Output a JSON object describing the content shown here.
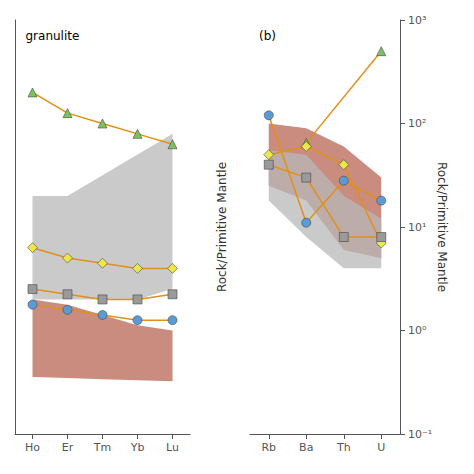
{
  "chart_data": [
    {
      "type": "line",
      "annotation": "granulite",
      "categories": [
        "Ho",
        "Er",
        "Tm",
        "Yb",
        "Lu"
      ],
      "ylim": [
        -5,
        35
      ],
      "tick_labels": "x",
      "grid": false,
      "series": [
        {
          "type": "band",
          "color": "#C07868",
          "values": [
            8,
            7.5,
            6.5,
            5.5,
            5.0
          ],
          "lower": [
            0.5,
            0.4,
            0.3,
            0.2,
            0.1
          ]
        },
        {
          "type": "band",
          "color": "#B8B8B8",
          "values": [
            18,
            18,
            20,
            22,
            24
          ],
          "lower": [
            8,
            8,
            8,
            8,
            9
          ]
        },
        {
          "type": "line",
          "color": "#E09018",
          "values": [
            28,
            26,
            25,
            24,
            23
          ]
        },
        {
          "type": "scatter",
          "marker": "triangle",
          "color": "#7DC35B",
          "values": [
            28,
            26,
            25,
            24,
            23
          ]
        },
        {
          "type": "line",
          "color": "#E09018",
          "values": [
            13,
            12,
            11.5,
            11,
            11
          ]
        },
        {
          "type": "scatter",
          "marker": "diamond",
          "color": "#EDE84A",
          "values": [
            13,
            12,
            11.5,
            11,
            11
          ]
        },
        {
          "type": "line",
          "color": "#E09018",
          "values": [
            9,
            8.5,
            8,
            8,
            8.5
          ]
        },
        {
          "type": "scatter",
          "marker": "square",
          "color": "#9A9A9A",
          "values": [
            9,
            8.5,
            8,
            8,
            8.5
          ]
        },
        {
          "type": "line",
          "color": "#E09018",
          "values": [
            7.5,
            7,
            6.5,
            6,
            6
          ]
        },
        {
          "type": "scatter",
          "marker": "circle",
          "color": "#5B9BD5",
          "values": [
            7.5,
            7,
            6.5,
            6,
            6
          ]
        }
      ]
    },
    {
      "type": "line",
      "annotation": "(b)",
      "ylabel": "Rock/Primitive Mantle",
      "categories": [
        "Rb",
        "Ba",
        "Th",
        "U"
      ],
      "log": "y",
      "ylim": [
        0.1,
        1000
      ],
      "yticks": [
        {
          "value": 0.1,
          "label": "10⁻¹"
        },
        {
          "value": 1,
          "label": "10⁰"
        },
        {
          "value": 10,
          "label": "10¹"
        },
        {
          "value": 100,
          "label": "10²"
        },
        {
          "value": 1000,
          "label": "10³"
        }
      ],
      "grid": false,
      "series": [
        {
          "type": "band",
          "color": "#C07868",
          "values": [
            100,
            90,
            60,
            30
          ],
          "lower": [
            25,
            18,
            6,
            5
          ]
        },
        {
          "type": "band",
          "color": "#B8B8B8",
          "values": [
            55,
            50,
            20,
            12
          ],
          "lower": [
            18,
            8,
            4,
            4
          ]
        },
        {
          "type": "line",
          "color": "#E09018",
          "x": [
            "Ba",
            "U"
          ],
          "values": [
            65,
            500
          ]
        },
        {
          "type": "scatter",
          "marker": "triangle",
          "color": "#7DC35B",
          "x": [
            "Ba",
            "U"
          ],
          "values": [
            65,
            500
          ]
        },
        {
          "type": "line",
          "color": "#E09018",
          "values": [
            50,
            60,
            40,
            7
          ]
        },
        {
          "type": "scatter",
          "marker": "diamond",
          "color": "#EDE84A",
          "values": [
            50,
            60,
            40,
            7
          ]
        },
        {
          "type": "line",
          "color": "#E09018",
          "values": [
            40,
            30,
            8,
            8
          ]
        },
        {
          "type": "scatter",
          "marker": "square",
          "color": "#9A9A9A",
          "values": [
            40,
            30,
            8,
            8
          ]
        },
        {
          "type": "line",
          "color": "#E09018",
          "values": [
            120,
            11,
            28,
            18
          ]
        },
        {
          "type": "scatter",
          "marker": "circle",
          "color": "#5B9BD5",
          "values": [
            120,
            11,
            28,
            18
          ]
        }
      ]
    }
  ]
}
